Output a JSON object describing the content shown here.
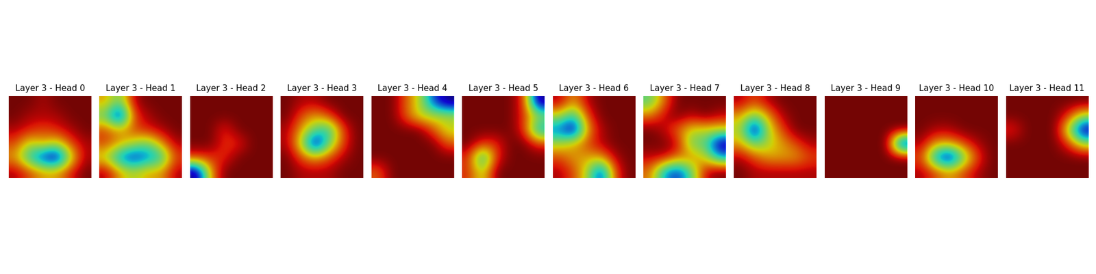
{
  "chart_data": [
    {
      "type": "heatmap",
      "title": "Layer 3 - Head 0",
      "tick_labels": false,
      "cells": [
        [
          0.05,
          0.05,
          0.1,
          0.05,
          0.05,
          0.05
        ],
        [
          0.05,
          0.1,
          0.1,
          0.1,
          0.05,
          0.05
        ],
        [
          0.1,
          0.15,
          0.2,
          0.15,
          0.1,
          0.05
        ],
        [
          0.2,
          0.4,
          0.3,
          0.4,
          0.2,
          0.1
        ],
        [
          0.3,
          0.6,
          0.8,
          0.9,
          0.4,
          0.1
        ],
        [
          0.1,
          0.2,
          0.3,
          0.3,
          0.15,
          0.05
        ]
      ]
    },
    {
      "type": "heatmap",
      "title": "Layer 3 - Head 1",
      "tick_labels": false,
      "cells": [
        [
          0.3,
          0.5,
          0.1,
          0.05,
          0.05,
          0.05
        ],
        [
          0.5,
          0.9,
          0.2,
          0.1,
          0.05,
          0.05
        ],
        [
          0.2,
          0.3,
          0.2,
          0.15,
          0.1,
          0.05
        ],
        [
          0.2,
          0.3,
          0.4,
          0.5,
          0.3,
          0.1
        ],
        [
          0.4,
          0.7,
          0.8,
          0.7,
          0.6,
          0.2
        ],
        [
          0.1,
          0.3,
          0.4,
          0.3,
          0.3,
          0.1
        ]
      ]
    },
    {
      "type": "heatmap",
      "title": "Layer 3 - Head 2",
      "tick_labels": false,
      "cells": [
        [
          0.05,
          0.05,
          0.05,
          0.05,
          0.05,
          0.05
        ],
        [
          0.05,
          0.05,
          0.05,
          0.05,
          0.05,
          0.05
        ],
        [
          0.05,
          0.05,
          0.1,
          0.05,
          0.05,
          0.05
        ],
        [
          0.05,
          0.05,
          0.1,
          0.1,
          0.05,
          0.05
        ],
        [
          0.1,
          0.1,
          0.1,
          0.05,
          0.05,
          0.05
        ],
        [
          0.4,
          0.15,
          0.05,
          0.05,
          0.05,
          0.05
        ]
      ]
    },
    {
      "type": "heatmap",
      "title": "Layer 3 - Head 3",
      "tick_labels": false,
      "cells": [
        [
          0.05,
          0.1,
          0.1,
          0.05,
          0.05,
          0.05
        ],
        [
          0.05,
          0.2,
          0.3,
          0.2,
          0.05,
          0.05
        ],
        [
          0.1,
          0.3,
          0.5,
          0.6,
          0.2,
          0.05
        ],
        [
          0.1,
          0.4,
          0.9,
          0.5,
          0.2,
          0.05
        ],
        [
          0.05,
          0.2,
          0.3,
          0.2,
          0.1,
          0.05
        ],
        [
          0.05,
          0.1,
          0.1,
          0.1,
          0.05,
          0.05
        ]
      ]
    },
    {
      "type": "heatmap",
      "title": "Layer 3 - Head 4",
      "tick_labels": false,
      "cells": [
        [
          0.1,
          0.1,
          0.15,
          0.2,
          0.3,
          0.35
        ],
        [
          0.1,
          0.1,
          0.15,
          0.2,
          0.2,
          0.2
        ],
        [
          0.1,
          0.1,
          0.1,
          0.1,
          0.15,
          0.2
        ],
        [
          0.1,
          0.1,
          0.1,
          0.1,
          0.1,
          0.15
        ],
        [
          0.1,
          0.1,
          0.1,
          0.1,
          0.1,
          0.1
        ],
        [
          0.15,
          0.1,
          0.1,
          0.1,
          0.1,
          0.1
        ]
      ]
    },
    {
      "type": "heatmap",
      "title": "Layer 3 - Head 5",
      "tick_labels": false,
      "cells": [
        [
          0.05,
          0.05,
          0.05,
          0.05,
          0.1,
          0.4
        ],
        [
          0.05,
          0.05,
          0.05,
          0.05,
          0.1,
          0.2
        ],
        [
          0.05,
          0.05,
          0.05,
          0.05,
          0.1,
          0.3
        ],
        [
          0.05,
          0.1,
          0.1,
          0.05,
          0.05,
          0.1
        ],
        [
          0.1,
          0.3,
          0.1,
          0.05,
          0.05,
          0.05
        ],
        [
          0.1,
          0.2,
          0.05,
          0.05,
          0.05,
          0.05
        ]
      ]
    },
    {
      "type": "heatmap",
      "title": "Layer 3 - Head 6",
      "tick_labels": false,
      "cells": [
        [
          0.1,
          0.3,
          0.1,
          0.05,
          0.05,
          0.05
        ],
        [
          0.4,
          0.6,
          0.2,
          0.05,
          0.05,
          0.05
        ],
        [
          0.7,
          0.9,
          0.3,
          0.1,
          0.05,
          0.05
        ],
        [
          0.4,
          0.3,
          0.2,
          0.1,
          0.05,
          0.05
        ],
        [
          0.2,
          0.3,
          0.3,
          0.3,
          0.1,
          0.05
        ],
        [
          0.1,
          0.2,
          0.4,
          0.8,
          0.2,
          0.05
        ]
      ]
    },
    {
      "type": "heatmap",
      "title": "Layer 3 - Head 7",
      "tick_labels": false,
      "cells": [
        [
          0.4,
          0.2,
          0.05,
          0.05,
          0.05,
          0.05
        ],
        [
          0.2,
          0.1,
          0.05,
          0.1,
          0.05,
          0.1
        ],
        [
          0.05,
          0.1,
          0.2,
          0.3,
          0.3,
          0.3
        ],
        [
          0.05,
          0.05,
          0.1,
          0.4,
          0.4,
          0.7
        ],
        [
          0.1,
          0.1,
          0.2,
          0.2,
          0.3,
          0.5
        ],
        [
          0.2,
          0.5,
          0.6,
          0.4,
          0.1,
          0.05
        ]
      ]
    },
    {
      "type": "heatmap",
      "title": "Layer 3 - Head 8",
      "tick_labels": false,
      "cells": [
        [
          0.1,
          0.2,
          0.1,
          0.05,
          0.05,
          0.05
        ],
        [
          0.3,
          0.5,
          0.3,
          0.1,
          0.05,
          0.05
        ],
        [
          0.4,
          0.9,
          0.4,
          0.2,
          0.05,
          0.05
        ],
        [
          0.3,
          0.5,
          0.4,
          0.3,
          0.2,
          0.1
        ],
        [
          0.1,
          0.2,
          0.3,
          0.3,
          0.3,
          0.2
        ],
        [
          0.05,
          0.1,
          0.1,
          0.1,
          0.1,
          0.1
        ]
      ]
    },
    {
      "type": "heatmap",
      "title": "Layer 3 - Head 9",
      "tick_labels": false,
      "cells": [
        [
          0.05,
          0.05,
          0.05,
          0.05,
          0.05,
          0.05
        ],
        [
          0.05,
          0.05,
          0.05,
          0.05,
          0.05,
          0.05
        ],
        [
          0.05,
          0.05,
          0.05,
          0.05,
          0.05,
          0.05
        ],
        [
          0.05,
          0.05,
          0.05,
          0.05,
          0.05,
          0.1
        ],
        [
          0.05,
          0.05,
          0.05,
          0.05,
          0.05,
          0.05
        ],
        [
          0.05,
          0.05,
          0.05,
          0.05,
          0.05,
          0.05
        ]
      ]
    },
    {
      "type": "heatmap",
      "title": "Layer 3 - Head 10",
      "tick_labels": false,
      "cells": [
        [
          0.05,
          0.05,
          0.05,
          0.05,
          0.05,
          0.05
        ],
        [
          0.05,
          0.05,
          0.05,
          0.05,
          0.05,
          0.05
        ],
        [
          0.05,
          0.1,
          0.1,
          0.05,
          0.05,
          0.05
        ],
        [
          0.1,
          0.3,
          0.3,
          0.2,
          0.1,
          0.05
        ],
        [
          0.2,
          0.7,
          0.9,
          0.5,
          0.2,
          0.05
        ],
        [
          0.1,
          0.2,
          0.3,
          0.2,
          0.1,
          0.05
        ]
      ]
    },
    {
      "type": "heatmap",
      "title": "Layer 3 - Head 11",
      "tick_labels": false,
      "cells": [
        [
          0.05,
          0.05,
          0.05,
          0.05,
          0.05,
          0.05
        ],
        [
          0.05,
          0.05,
          0.05,
          0.05,
          0.1,
          0.2
        ],
        [
          0.1,
          0.05,
          0.05,
          0.05,
          0.2,
          0.4
        ],
        [
          0.05,
          0.05,
          0.05,
          0.05,
          0.1,
          0.2
        ],
        [
          0.05,
          0.05,
          0.05,
          0.05,
          0.05,
          0.05
        ],
        [
          0.05,
          0.05,
          0.05,
          0.05,
          0.05,
          0.05
        ]
      ]
    }
  ]
}
